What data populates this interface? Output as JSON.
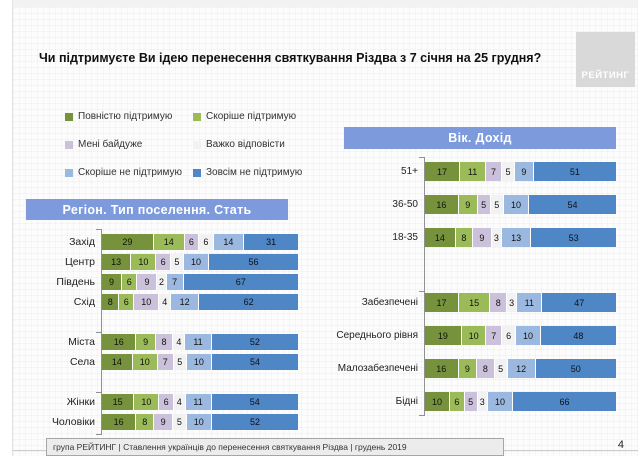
{
  "header": {
    "title": "Чи підтримуєте Ви ідею перенесення святкування Різдва з 7 січня на 25 грудня?",
    "logo": "РЕЙТИНГ"
  },
  "page": {
    "footer": "група РЕЙТИНГ | Ставлення українців до перенесення святкування Різдва | грудень 2019",
    "number": "4"
  },
  "legend": {
    "position": "top-left",
    "items": [
      {
        "label": "Повністю підтримую",
        "color": "#76923C"
      },
      {
        "label": "Скоріше підтримую",
        "color": "#9BBB59"
      },
      {
        "label": "Мені байдуже",
        "color": "#CCC1DA"
      },
      {
        "label": "Важко відповісти",
        "color": "#F2F2F2"
      },
      {
        "label": "Скоріше не підтримую",
        "color": "#9BB9E0"
      },
      {
        "label": "Зовсім не підтримую",
        "color": "#4E86C6"
      }
    ]
  },
  "chart_data": [
    {
      "type": "bar",
      "orientation": "horizontal-stacked",
      "title": "Регіон. Тип поселення. Стать",
      "header_bg": "#7D9ADC",
      "xlim": [
        0,
        100
      ],
      "value_labels": true,
      "series_names": [
        "Повністю підтримую",
        "Скоріше підтримую",
        "Мені байдуже",
        "Важко відповісти",
        "Скоріше не підтримую",
        "Зовсім не підтримую"
      ],
      "series_colors": [
        "#76923C",
        "#9BBB59",
        "#CCC1DA",
        "#F2F2F2",
        "#9BB9E0",
        "#4E86C6"
      ],
      "groups": [
        {
          "name": "region",
          "rows": [
            {
              "category": "Захід",
              "values": [
                29,
                14,
                6,
                6,
                14,
                31
              ]
            },
            {
              "category": "Центр",
              "values": [
                13,
                10,
                6,
                5,
                10,
                56
              ]
            },
            {
              "category": "Південь",
              "values": [
                9,
                6,
                9,
                2,
                7,
                67
              ]
            },
            {
              "category": "Схід",
              "values": [
                8,
                6,
                10,
                4,
                12,
                62
              ]
            }
          ]
        },
        {
          "name": "settlement",
          "rows": [
            {
              "category": "Міста",
              "values": [
                16,
                9,
                8,
                4,
                11,
                52
              ]
            },
            {
              "category": "Села",
              "values": [
                14,
                10,
                7,
                5,
                10,
                54
              ]
            }
          ]
        },
        {
          "name": "gender",
          "rows": [
            {
              "category": "Жінки",
              "values": [
                15,
                10,
                6,
                4,
                11,
                54
              ]
            },
            {
              "category": "Чоловіки",
              "values": [
                16,
                8,
                9,
                5,
                10,
                52
              ]
            }
          ]
        }
      ]
    },
    {
      "type": "bar",
      "orientation": "horizontal-stacked",
      "title": "Вік. Дохід",
      "header_bg": "#7D9ADC",
      "xlim": [
        0,
        100
      ],
      "value_labels": true,
      "series_names": [
        "Повністю підтримую",
        "Скоріше підтримую",
        "Мені байдуже",
        "Важко відповісти",
        "Скоріше не підтримую",
        "Зовсім не підтримую"
      ],
      "series_colors": [
        "#76923C",
        "#9BBB59",
        "#CCC1DA",
        "#F2F2F2",
        "#9BB9E0",
        "#4E86C6"
      ],
      "groups": [
        {
          "name": "age",
          "rows": [
            {
              "category": "51+",
              "values": [
                17,
                11,
                7,
                5,
                9,
                51
              ]
            },
            {
              "category": "36-50",
              "values": [
                16,
                9,
                5,
                5,
                10,
                54
              ]
            },
            {
              "category": "18-35",
              "values": [
                14,
                8,
                9,
                3,
                13,
                53
              ]
            }
          ]
        },
        {
          "name": "income",
          "rows": [
            {
              "category": "Забезпечені",
              "values": [
                17,
                15,
                8,
                3,
                11,
                47
              ]
            },
            {
              "category": "Середнього рівня",
              "values": [
                19,
                10,
                7,
                6,
                10,
                48
              ]
            },
            {
              "category": "Малозабезпечені",
              "values": [
                16,
                9,
                8,
                5,
                12,
                50
              ]
            },
            {
              "category": "Бідні",
              "values": [
                10,
                6,
                5,
                3,
                10,
                66
              ]
            }
          ]
        }
      ]
    }
  ]
}
